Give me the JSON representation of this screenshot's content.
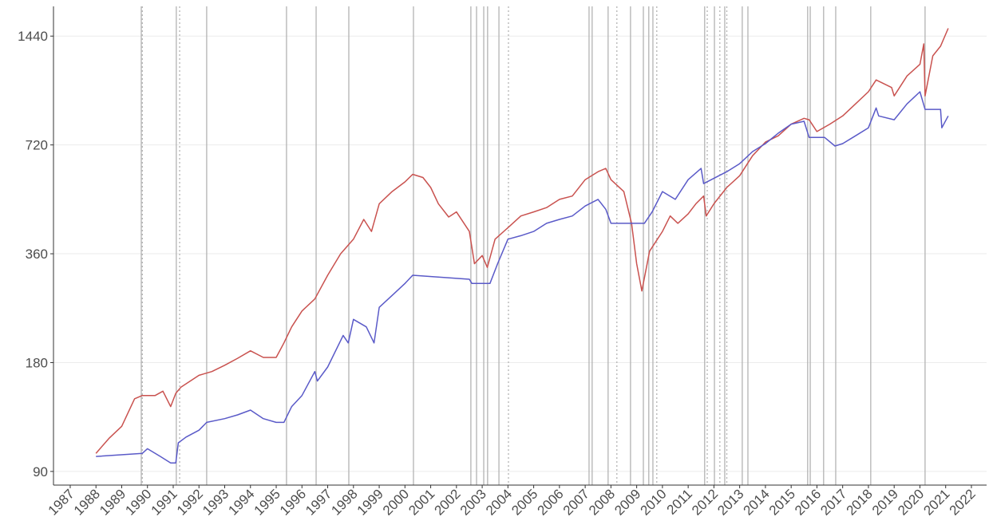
{
  "chart_data": {
    "type": "line",
    "log_scale_y": true,
    "grid": true,
    "xlim": [
      1986.35,
      2022.59
    ],
    "ylim": [
      82.5,
      1740
    ],
    "xticks": [
      1987,
      1988,
      1989,
      1990,
      1991,
      1992,
      1993,
      1994,
      1995,
      1996,
      1997,
      1998,
      1999,
      2000,
      2001,
      2002,
      2003,
      2004,
      2005,
      2006,
      2007,
      2008,
      2009,
      2010,
      2011,
      2012,
      2013,
      2014,
      2015,
      2016,
      2017,
      2018,
      2019,
      2020,
      2021,
      2022
    ],
    "yticks": [
      90,
      180,
      360,
      720,
      1440
    ],
    "vlines_solid": [
      1989.76,
      1991.12,
      1992.3,
      1995.4,
      1996.55,
      1997.82,
      2000.33,
      2002.56,
      2002.78,
      2003.06,
      2003.21,
      2003.65,
      2007.15,
      2007.27,
      2007.89,
      2008.76,
      2009.26,
      2009.47,
      2009.63,
      2011.64,
      2012.02,
      2012.42,
      2013.1,
      2013.32,
      2015.64,
      2015.74,
      2016.26,
      2016.73,
      2018.09,
      2020.2
    ],
    "vlines_dotted": [
      1989.8,
      1991.25,
      2004.02,
      2008.23,
      2009.78,
      2011.74,
      2012.23,
      2012.5
    ],
    "vline_color": "#b3b3b3",
    "series": [
      {
        "color": "#c9524f",
        "x": [
          1988.0,
          1988.5,
          1989.0,
          1989.5,
          1989.8,
          1990.3,
          1990.6,
          1990.9,
          1991.1,
          1991.3,
          1992.0,
          1992.5,
          1993.0,
          1993.5,
          1994.0,
          1994.5,
          1995.0,
          1995.3,
          1995.6,
          1996.0,
          1996.5,
          1997.0,
          1997.5,
          1998.0,
          1998.4,
          1998.7,
          1999.0,
          1999.5,
          2000.0,
          2000.3,
          2000.7,
          2001.0,
          2001.3,
          2001.7,
          2002.0,
          2002.5,
          2002.7,
          2003.0,
          2003.2,
          2003.5,
          2004.0,
          2004.5,
          2005.0,
          2005.5,
          2006.0,
          2006.5,
          2007.0,
          2007.5,
          2007.8,
          2008.0,
          2008.5,
          2008.8,
          2009.0,
          2009.2,
          2009.5,
          2010.0,
          2010.3,
          2010.6,
          2011.0,
          2011.3,
          2011.6,
          2011.7,
          2012.0,
          2012.5,
          2013.0,
          2013.5,
          2014.0,
          2014.5,
          2015.0,
          2015.5,
          2015.7,
          2016.0,
          2016.5,
          2017.0,
          2017.5,
          2018.0,
          2018.3,
          2018.9,
          2019.0,
          2019.5,
          2020.0,
          2020.15,
          2020.2,
          2020.5,
          2020.8,
          2021.1
        ],
        "values": [
          101,
          111,
          120,
          143,
          146,
          146,
          150,
          136,
          148,
          154,
          166,
          170,
          177,
          185,
          194,
          186,
          186,
          204,
          226,
          250,
          270,
          314,
          360,
          395,
          448,
          415,
          495,
          535,
          569,
          597,
          585,
          549,
          495,
          455,
          470,
          415,
          338,
          356,
          330,
          395,
          425,
          458,
          470,
          483,
          509,
          520,
          577,
          607,
          620,
          577,
          535,
          437,
          338,
          284,
          366,
          415,
          458,
          437,
          464,
          495,
          520,
          458,
          495,
          549,
          592,
          672,
          733,
          763,
          822,
          853,
          845,
          784,
          822,
          866,
          935,
          1010,
          1089,
          1038,
          984,
          1117,
          1203,
          1370,
          984,
          1270,
          1350,
          1513
        ]
      },
      {
        "color": "#5a5ac8",
        "x": [
          1988.0,
          1989.8,
          1990.0,
          1990.5,
          1990.9,
          1991.1,
          1991.2,
          1991.5,
          1992.0,
          1992.3,
          1993.0,
          1993.5,
          1994.0,
          1994.5,
          1995.0,
          1995.3,
          1995.6,
          1996.0,
          1996.5,
          1996.6,
          1997.0,
          1997.6,
          1997.8,
          1998.0,
          1998.5,
          1998.8,
          1999.0,
          1999.5,
          2000.0,
          2000.3,
          2002.5,
          2002.6,
          2003.3,
          2003.6,
          2004.0,
          2004.5,
          2005.0,
          2005.5,
          2006.0,
          2006.5,
          2007.0,
          2007.5,
          2007.8,
          2008.0,
          2009.3,
          2009.6,
          2010.0,
          2010.5,
          2011.0,
          2011.5,
          2011.6,
          2012.5,
          2013.0,
          2013.5,
          2014.0,
          2014.5,
          2015.0,
          2015.5,
          2015.7,
          2016.3,
          2016.7,
          2017.0,
          2017.5,
          2018.0,
          2018.3,
          2018.4,
          2019.0,
          2019.5,
          2020.0,
          2020.2,
          2020.8,
          2020.85,
          2021.1
        ],
        "values": [
          99,
          101,
          104,
          99,
          95,
          95,
          108,
          112,
          117,
          123,
          126,
          129,
          133,
          126,
          123,
          123,
          136,
          146,
          170,
          160,
          175,
          214,
          204,
          237,
          226,
          204,
          256,
          276,
          298,
          314,
          306,
          298,
          298,
          338,
          395,
          404,
          415,
          437,
          448,
          458,
          488,
          509,
          478,
          437,
          437,
          470,
          535,
          509,
          577,
          620,
          563,
          607,
          639,
          690,
          726,
          776,
          822,
          837,
          755,
          755,
          715,
          726,
          763,
          803,
          911,
          866,
          845,
          935,
          1010,
          903,
          903,
          803,
          866
        ]
      }
    ]
  }
}
